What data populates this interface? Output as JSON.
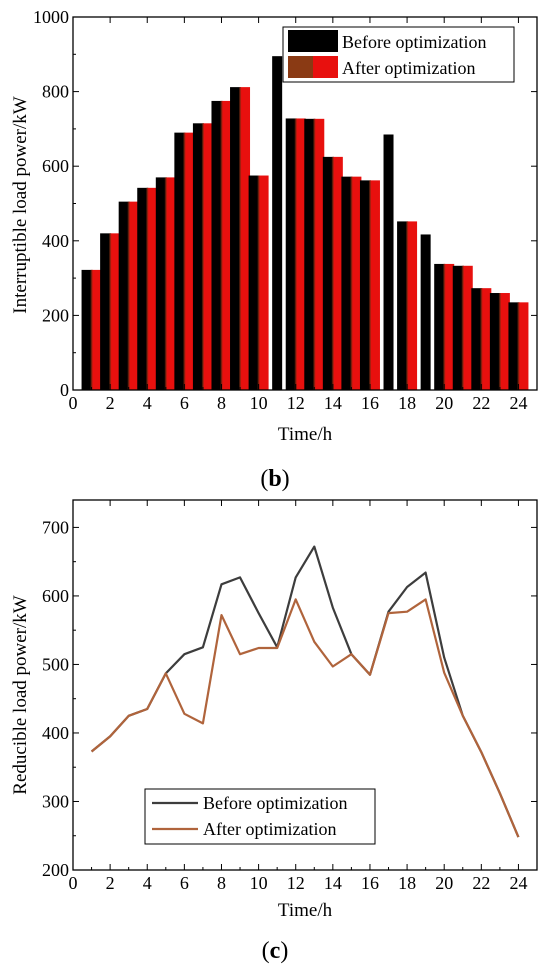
{
  "panel_labels": {
    "b": "b",
    "c": "c"
  },
  "chart_data": [
    {
      "type": "bar",
      "panel": "b",
      "xlabel": "Time/h",
      "ylabel": "Interruptible load power/kW",
      "xlim": [
        0,
        25
      ],
      "ylim": [
        0,
        1000
      ],
      "xticks": [
        0,
        2,
        4,
        6,
        8,
        10,
        12,
        14,
        16,
        18,
        20,
        22,
        24
      ],
      "yticks": [
        0,
        200,
        400,
        600,
        800,
        1000
      ],
      "legend_position": "top-right",
      "colors": {
        "before": "#000000",
        "after": "#e8100e"
      },
      "categories": [
        1,
        2,
        3,
        4,
        5,
        6,
        7,
        8,
        9,
        10,
        11,
        12,
        13,
        14,
        15,
        16,
        17,
        18,
        19,
        20,
        21,
        22,
        23,
        24
      ],
      "series": [
        {
          "name": "Before optimization",
          "values": [
            322,
            420,
            505,
            542,
            570,
            690,
            715,
            775,
            812,
            575,
            895,
            728,
            727,
            625,
            572,
            562,
            685,
            452,
            417,
            338,
            333,
            273,
            260,
            235
          ]
        },
        {
          "name": "After optimization",
          "values": [
            322,
            420,
            505,
            542,
            570,
            690,
            715,
            775,
            812,
            575,
            0,
            728,
            727,
            625,
            572,
            562,
            0,
            452,
            0,
            338,
            333,
            273,
            260,
            235
          ]
        }
      ]
    },
    {
      "type": "line",
      "panel": "c",
      "xlabel": "Time/h",
      "ylabel": "Reducible load power/kW",
      "xlim": [
        0,
        25
      ],
      "ylim": [
        200,
        740
      ],
      "xticks": [
        0,
        2,
        4,
        6,
        8,
        10,
        12,
        14,
        16,
        18,
        20,
        22,
        24
      ],
      "yticks": [
        200,
        300,
        400,
        500,
        600,
        700
      ],
      "legend_position": "bottom-center",
      "colors": {
        "before": "#3d3d3d",
        "after": "#b0643c"
      },
      "x": [
        1,
        2,
        3,
        4,
        5,
        6,
        7,
        8,
        9,
        10,
        11,
        12,
        13,
        14,
        15,
        16,
        17,
        18,
        19,
        20,
        21,
        22,
        23,
        24
      ],
      "series": [
        {
          "name": "Before optimization",
          "values": [
            373,
            395,
            425,
            435,
            487,
            515,
            525,
            617,
            627,
            575,
            525,
            627,
            672,
            583,
            515,
            485,
            577,
            613,
            634,
            510,
            425,
            372,
            312,
            248
          ]
        },
        {
          "name": "After optimization",
          "values": [
            373,
            395,
            425,
            435,
            487,
            428,
            414,
            572,
            515,
            524,
            524,
            595,
            533,
            497,
            515,
            485,
            575,
            577,
            595,
            488,
            425,
            372,
            312,
            248
          ]
        }
      ]
    }
  ]
}
